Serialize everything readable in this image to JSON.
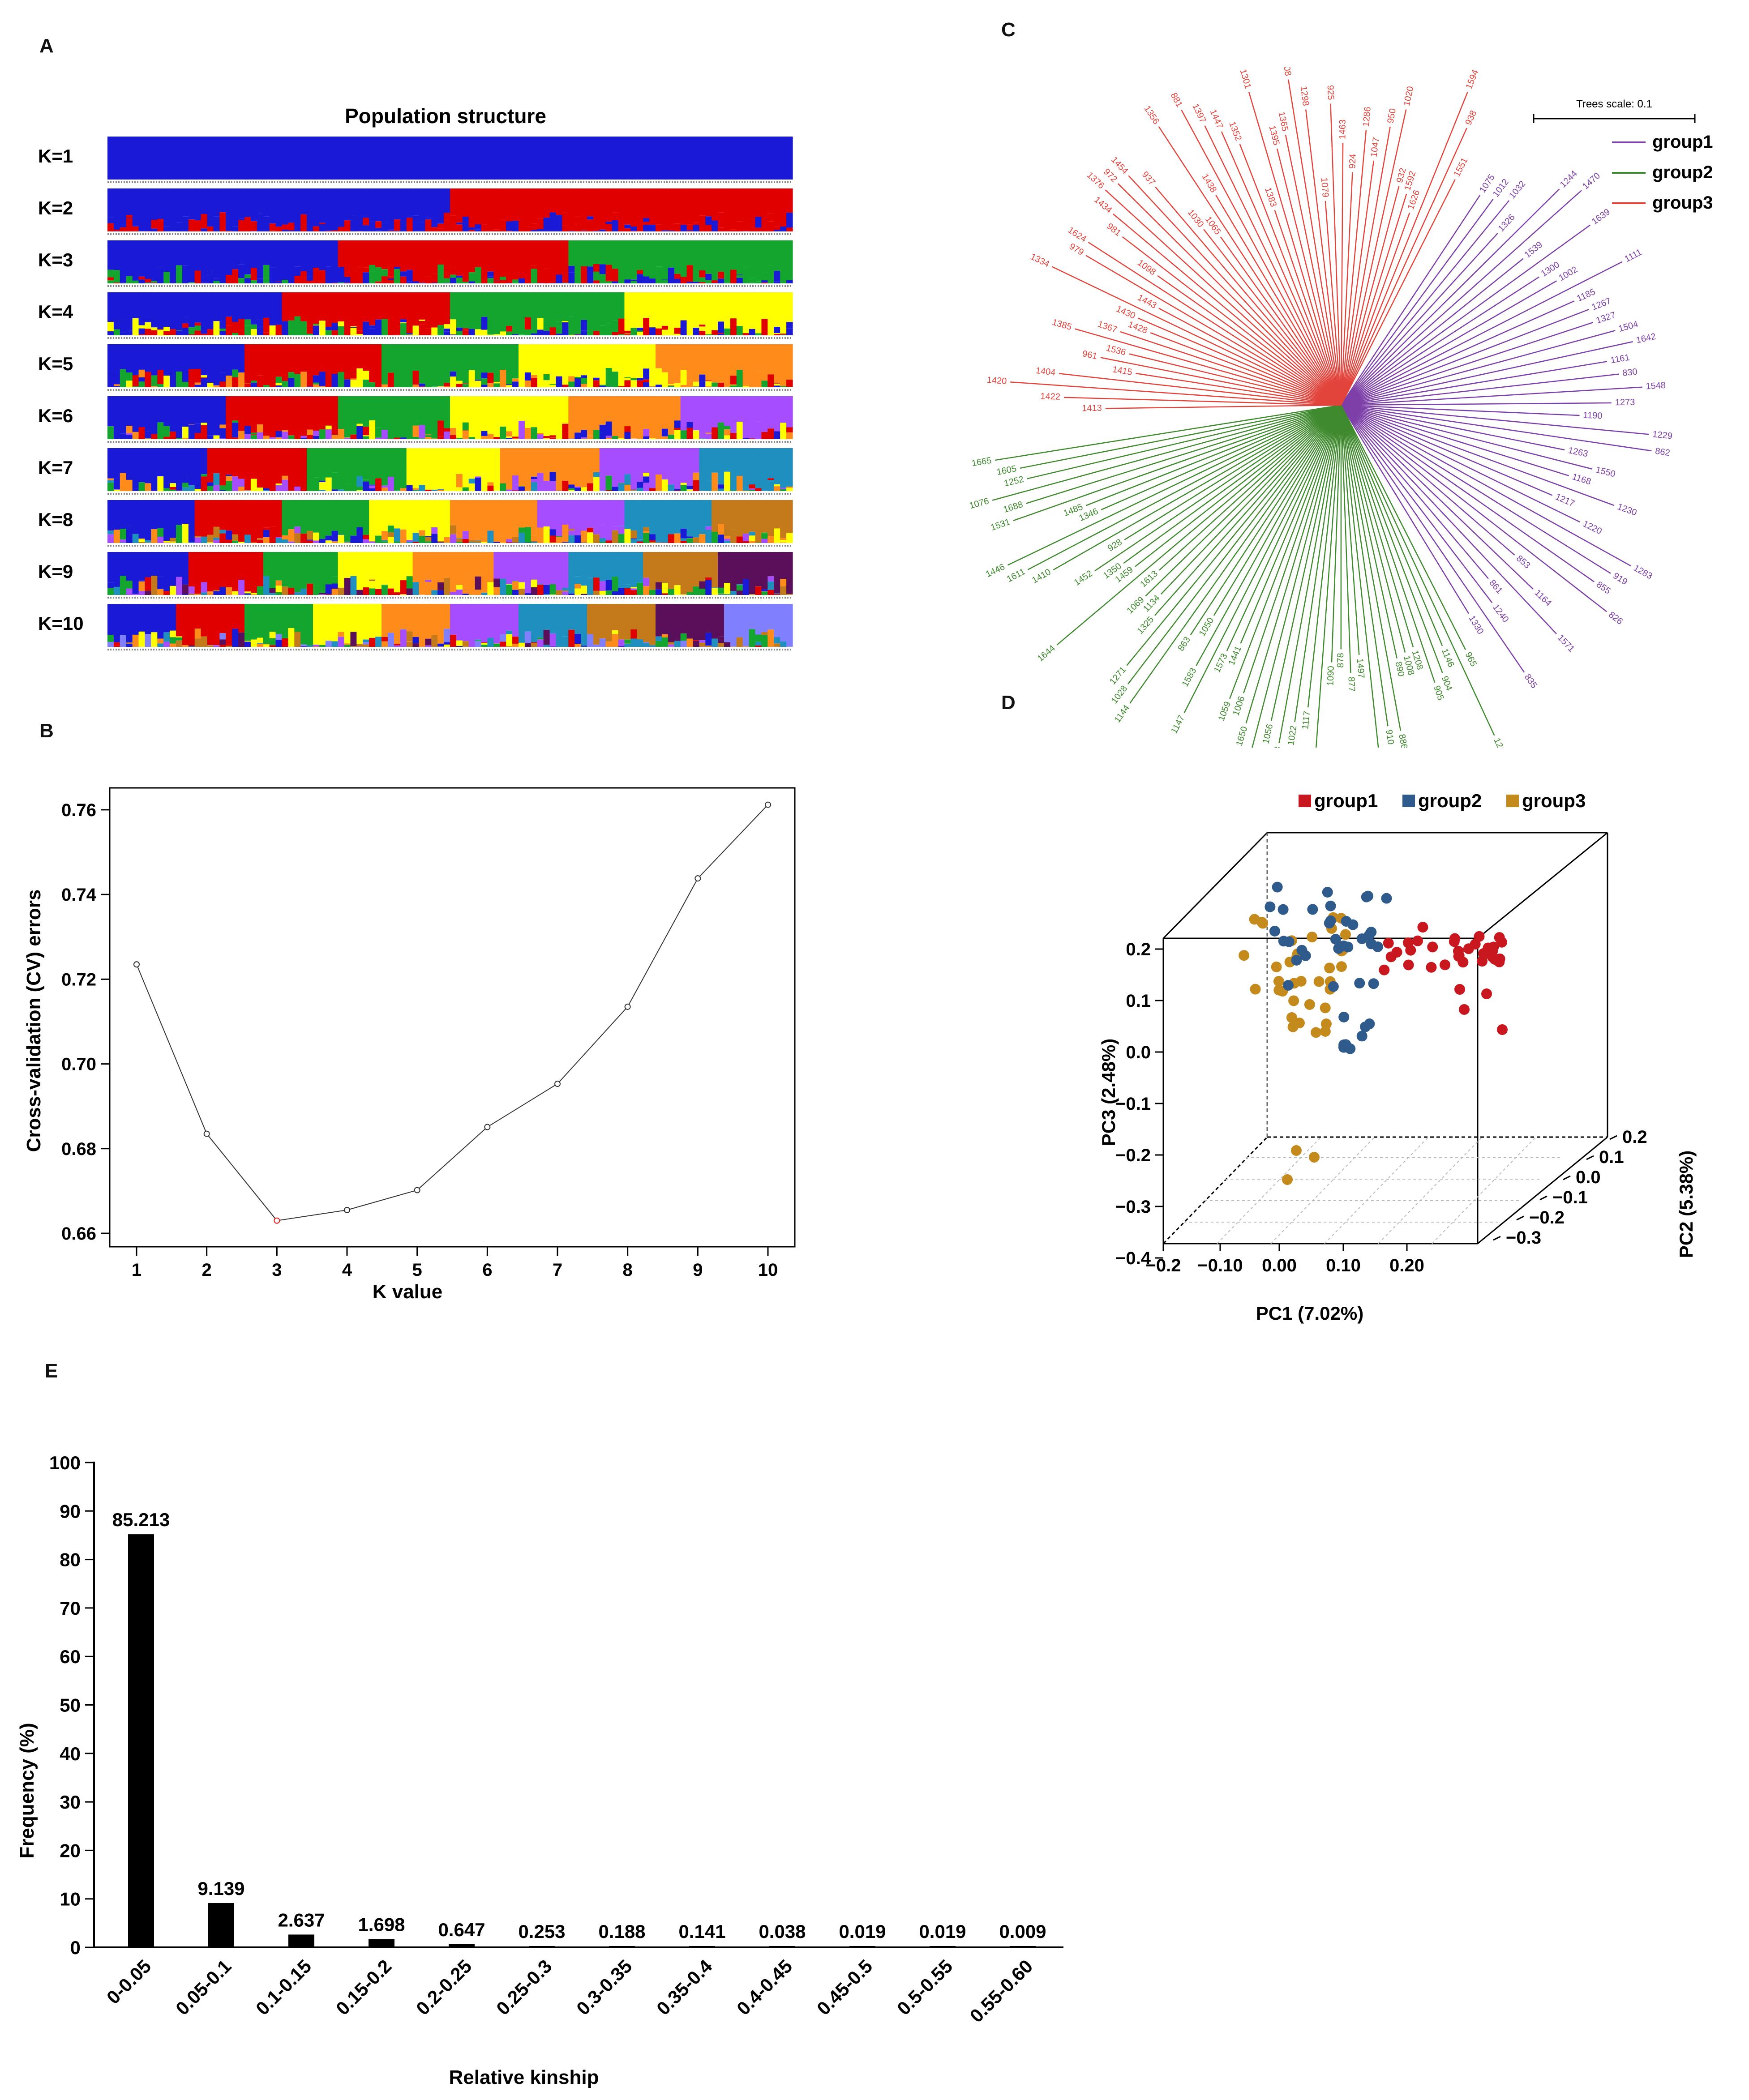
{
  "panels": {
    "a": "A",
    "b": "B",
    "c": "C",
    "d": "D",
    "e": "E"
  },
  "colors": {
    "group1": "#7d3fa8",
    "group2": "#3f8a2e",
    "group3": "#e2443c",
    "pca_group1": "#c8171f",
    "pca_group2": "#2f5a8c",
    "pca_group3": "#c48a1c",
    "bar": "#000000",
    "axis": "#000000",
    "cv_line": "#333333",
    "cv_min": "#e02020"
  },
  "structure": {
    "title": "Population structure",
    "labels": [
      "K=1",
      "K=2",
      "K=3",
      "K=4",
      "K=5",
      "K=6",
      "K=7",
      "K=8",
      "K=9",
      "K=10"
    ],
    "palette": [
      "#1a1ad6",
      "#e00000",
      "#13a52e",
      "#ffff00",
      "#ff8c1a",
      "#a64dff",
      "#1f8fbf",
      "#c47a1a",
      "#5a0f5a",
      "#8080ff"
    ]
  },
  "tree": {
    "scale_label": "Trees scale: 0.1",
    "legend": [
      "group1",
      "group2",
      "group3"
    ],
    "group1_labels": [
      "1075",
      "1012",
      "1032",
      "1326",
      "1244",
      "1470",
      "1539",
      "1639",
      "1300",
      "1002",
      "1111",
      "1185",
      "1267",
      "1327",
      "1504",
      "1642",
      "1161",
      "830",
      "1548",
      "1273",
      "1190",
      "1229",
      "862",
      "1263",
      "1550",
      "1168",
      "1230",
      "1217",
      "1220",
      "1283",
      "919",
      "855",
      "826",
      "853",
      "1164",
      "1571",
      "861",
      "1240",
      "835",
      "1330"
    ],
    "group2_labels": [
      "965",
      "1210",
      "1146",
      "904",
      "905",
      "1208",
      "1008",
      "890",
      "886",
      "910",
      "1200",
      "1497",
      "877",
      "878",
      "1090",
      "1520",
      "1117",
      "1022",
      "1093",
      "1056",
      "1320",
      "1650",
      "1006",
      "1059",
      "1441",
      "1573",
      "1147",
      "1583",
      "1050",
      "863",
      "1144",
      "1028",
      "1271",
      "1325",
      "1134",
      "1069",
      "1613",
      "1644",
      "1459",
      "1350",
      "1452",
      "928",
      "1410",
      "1611",
      "1446",
      "1346",
      "1485",
      "1531",
      "1688",
      "1076",
      "1252",
      "1605",
      "1665"
    ],
    "group3_labels": [
      "1413",
      "1422",
      "1420",
      "1404",
      "1415",
      "961",
      "1536",
      "1385",
      "1367",
      "1428",
      "1430",
      "1334",
      "1443",
      "979",
      "1624",
      "1098",
      "981",
      "1434",
      "1376",
      "972",
      "1454",
      "937",
      "1030",
      "1065",
      "1356",
      "1438",
      "881",
      "1397",
      "1447",
      "1352",
      "1383",
      "1301",
      "1395",
      "1365",
      "908",
      "1298",
      "1079",
      "925",
      "1463",
      "924",
      "1286",
      "1047",
      "950",
      "1020",
      "932",
      "1592",
      "1626",
      "1594",
      "938",
      "1551"
    ]
  },
  "pca": {
    "legend": [
      "group1",
      "group2",
      "group3"
    ],
    "xlabel": "PC1 (7.02%)",
    "ylabel": "PC3 (2.48%)",
    "zlabel": "PC2 (5.38%)",
    "x_ticks": [
      "−0.2",
      "−0.10",
      "0.00",
      "0.10",
      "0.20"
    ],
    "y_ticks": [
      "0.2",
      "0.1",
      "0.0",
      "−0.1",
      "−0.2",
      "−0.3",
      "−0.4"
    ],
    "z_ticks": [
      "0.2",
      "0.1",
      "0.0",
      "−0.1",
      "−0.2",
      "−0.3"
    ]
  },
  "chart_data": [
    {
      "type": "line",
      "title": "",
      "xlabel": "K value",
      "ylabel": "Cross-validation (CV) errors",
      "x": [
        1,
        2,
        3,
        4,
        5,
        6,
        7,
        8,
        9,
        10
      ],
      "values": [
        0.7235,
        0.6835,
        0.663,
        0.6655,
        0.6702,
        0.6851,
        0.6953,
        0.7135,
        0.7438,
        0.7612
      ],
      "x_ticks": [
        "1",
        "2",
        "3",
        "4",
        "5",
        "6",
        "7",
        "8",
        "9",
        "10"
      ],
      "y_ticks": [
        "0.66",
        "0.68",
        "0.70",
        "0.72",
        "0.74",
        "0.76"
      ],
      "ylim": [
        0.66,
        0.762
      ],
      "minimum_at": 3
    },
    {
      "type": "bar",
      "title": "",
      "xlabel": "Relative kinship",
      "ylabel": "Frequency (%)",
      "categories": [
        "0-0.05",
        "0.05-0.1",
        "0.1-0.15",
        "0.15-0.2",
        "0.2-0.25",
        "0.25-0.3",
        "0.3-0.35",
        "0.35-0.4",
        "0.4-0.45",
        "0.45-0.5",
        "0.5-0.55",
        "0.55-0.60"
      ],
      "values": [
        85.213,
        9.139,
        2.637,
        1.698,
        0.647,
        0.253,
        0.188,
        0.141,
        0.038,
        0.019,
        0.019,
        0.009
      ],
      "labels": [
        "85.213",
        "9.139",
        "2.637",
        "1.698",
        "0.647",
        "0.253",
        "0.188",
        "0.141",
        "0.038",
        "0.019",
        "0.019",
        "0.009"
      ],
      "y_ticks": [
        "0",
        "10",
        "20",
        "30",
        "40",
        "50",
        "60",
        "70",
        "80",
        "90",
        "100"
      ],
      "ylim": [
        0,
        100
      ]
    }
  ]
}
